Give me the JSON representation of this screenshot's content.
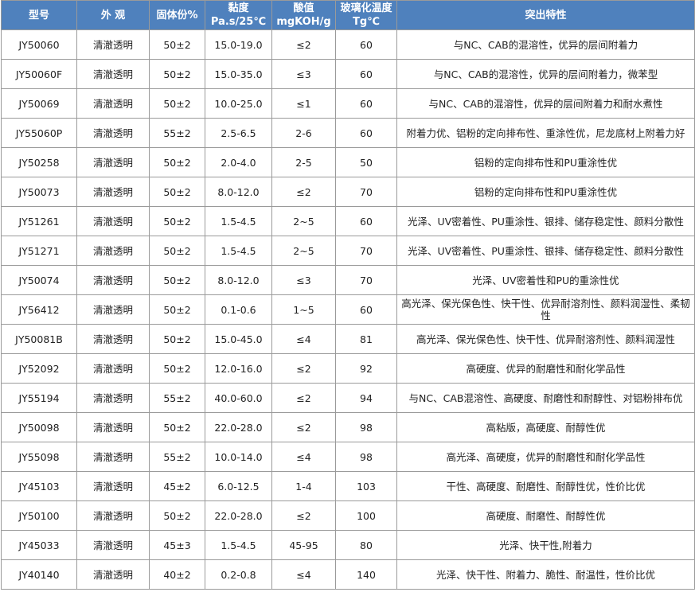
{
  "headers": [
    "型号",
    "外 观",
    "固体份%",
    "黏度 Pa.s/25℃",
    "酸值 mgKOH/g",
    "玻璃化温度 Tg℃",
    "突出特性"
  ],
  "rows": [
    [
      "JY50060",
      "清澈透明",
      "50±2",
      "15.0-19.0",
      "≤2",
      "60",
      "与NC、CAB的混溶性，优异的层间附着力"
    ],
    [
      "JY50060F",
      "清澈透明",
      "50±2",
      "15.0-35.0",
      "≤3",
      "60",
      "与NC、CAB的混溶性，优异的层间附着力，微苯型"
    ],
    [
      "JY50069",
      "清澈透明",
      "50±2",
      "10.0-25.0",
      "≤1",
      "60",
      "与NC、CAB的混溶性，优异的层间附着力和耐水煮性"
    ],
    [
      "JY55060P",
      "清澈透明",
      "55±2",
      "2.5-6.5",
      "2-6",
      "60",
      "附着力优、铝粉的定向排布性、重涂性优，尼龙底材上附着力好"
    ],
    [
      "JY50258",
      "清澈透明",
      "50±2",
      "2.0-4.0",
      "2-5",
      "50",
      "铝粉的定向排布性和PU重涂性优"
    ],
    [
      "JY50073",
      "清澈透明",
      "50±2",
      "8.0-12.0",
      "≤2",
      "70",
      "铝粉的定向排布性和PU重涂性优"
    ],
    [
      "JY51261",
      "清澈透明",
      "50±2",
      "1.5-4.5",
      "2~5",
      "60",
      "光泽、UV密着性、PU重涂性、银排、储存稳定性、颜料分散性"
    ],
    [
      "JY51271",
      "清澈透明",
      "50±2",
      "1.5-4.5",
      "2~5",
      "70",
      "光泽、UV密着性、PU重涂性、银排、储存稳定性、颜料分散性"
    ],
    [
      "JY50074",
      "清澈透明",
      "50±2",
      "8.0-12.0",
      "≤3",
      "70",
      "光泽、UV密着性和PU的重涂性优"
    ],
    [
      "JY56412",
      "清澈透明",
      "50±2",
      "0.1-0.6",
      "1~5",
      "60",
      "高光泽、保光保色性、快干性、优异耐溶剂性、颜料润湿性、柔韧性"
    ],
    [
      "JY50081B",
      "清澈透明",
      "50±2",
      "15.0-45.0",
      "≤4",
      "81",
      "高光泽、保光保色性、快干性、优异耐溶剂性、颜料润湿性"
    ],
    [
      "JY52092",
      "清澈透明",
      "50±2",
      "12.0-16.0",
      "≤2",
      "92",
      "高硬度、优异的耐磨性和耐化学品性"
    ],
    [
      "JY55194",
      "清澈透明",
      "55±2",
      "40.0-60.0",
      "≤2",
      "94",
      "与NC、CAB混溶性、高硬度、耐磨性和耐醇性、对铝粉排布优"
    ],
    [
      "JY50098",
      "清澈透明",
      "50±2",
      "22.0-28.0",
      "≤2",
      "98",
      "高粘版，高硬度、耐醇性优"
    ],
    [
      "JY55098",
      "清澈透明",
      "55±2",
      "10.0-14.0",
      "≤4",
      "98",
      "高光泽、高硬度，优异的耐磨性和耐化学品性"
    ],
    [
      "JY45103",
      "清澈透明",
      "45±2",
      "6.0-12.5",
      "1-4",
      "103",
      "干性、高硬度、耐磨性、耐醇性优，性价比优"
    ],
    [
      "JY50100",
      "清澈透明",
      "50±2",
      "22.0-28.0",
      "≤2",
      "100",
      "高硬度、耐磨性、耐醇性优"
    ],
    [
      "JY45033",
      "清澈透明",
      "45±3",
      "1.5-4.5",
      "45-95",
      "80",
      "光泽、快干性,附着力"
    ],
    [
      "JY40140",
      "清澈透明",
      "40±2",
      "0.2-0.8",
      "≤4",
      "140",
      "光泽、快干性、附着力、脆性、耐温性，性价比优"
    ]
  ]
}
